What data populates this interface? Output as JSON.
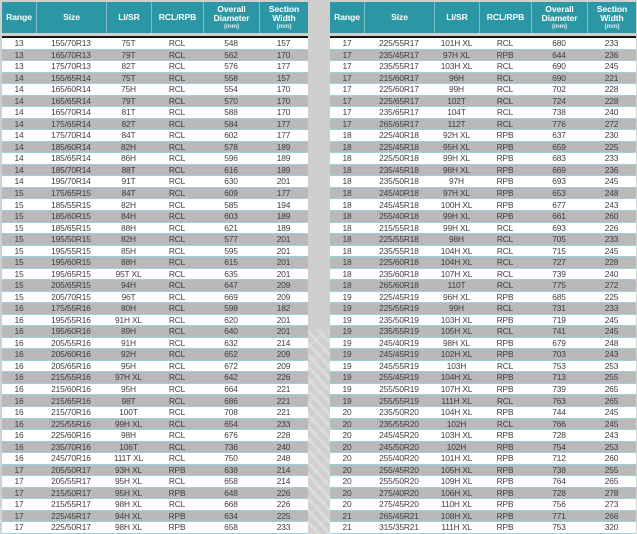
{
  "colors": {
    "header_bg": "#2B97A4",
    "header_text": "#FFFFFF",
    "header_unit_text": "#D8EDF0",
    "header_separator": "#5AB3BE",
    "header_rule": "#141414",
    "row_white": "#FFFFFF",
    "row_gray": "#B9B9B9",
    "row_separator": "#9AD2DA",
    "body_text": "#3D3D3D",
    "page_bg": "#CFCFCF"
  },
  "columns": [
    {
      "label": "Range",
      "unit": ""
    },
    {
      "label": "Size",
      "unit": ""
    },
    {
      "label": "LI/SR",
      "unit": ""
    },
    {
      "label": "RCL/RPB",
      "unit": ""
    },
    {
      "label": "Overall Diameter",
      "unit": "(mm)"
    },
    {
      "label": "Section Width",
      "unit": "(mm)"
    }
  ],
  "tables": [
    {
      "rows": [
        [
          "13",
          "155/70R13",
          "75T",
          "RCL",
          "548",
          "157"
        ],
        [
          "13",
          "165/70R13",
          "79T",
          "RCL",
          "562",
          "170"
        ],
        [
          "13",
          "175/70R13",
          "82T",
          "RCL",
          "576",
          "177"
        ],
        [
          "14",
          "155/65R14",
          "75T",
          "RCL",
          "558",
          "157"
        ],
        [
          "14",
          "165/60R14",
          "75H",
          "RCL",
          "554",
          "170"
        ],
        [
          "14",
          "165/65R14",
          "79T",
          "RCL",
          "570",
          "170"
        ],
        [
          "14",
          "165/70R14",
          "81T",
          "RCL",
          "588",
          "170"
        ],
        [
          "14",
          "175/65R14",
          "82T",
          "RCL",
          "584",
          "177"
        ],
        [
          "14",
          "175/70R14",
          "84T",
          "RCL",
          "602",
          "177"
        ],
        [
          "14",
          "185/60R14",
          "82H",
          "RCL",
          "578",
          "189"
        ],
        [
          "14",
          "185/65R14",
          "86H",
          "RCL",
          "596",
          "189"
        ],
        [
          "14",
          "185/70R14",
          "88T",
          "RCL",
          "616",
          "189"
        ],
        [
          "14",
          "195/70R14",
          "91T",
          "RCL",
          "630",
          "201"
        ],
        [
          "15",
          "175/65R15",
          "84T",
          "RCL",
          "609",
          "177"
        ],
        [
          "15",
          "185/55R15",
          "82H",
          "RCL",
          "585",
          "194"
        ],
        [
          "15",
          "185/60R15",
          "84H",
          "RCL",
          "603",
          "189"
        ],
        [
          "15",
          "185/65R15",
          "88H",
          "RCL",
          "621",
          "189"
        ],
        [
          "15",
          "195/50R15",
          "82H",
          "RCL",
          "577",
          "201"
        ],
        [
          "15",
          "195/55R15",
          "85H",
          "RCL",
          "595",
          "201"
        ],
        [
          "15",
          "195/60R15",
          "88H",
          "RCL",
          "615",
          "201"
        ],
        [
          "15",
          "195/65R15",
          "95T XL",
          "RCL",
          "635",
          "201"
        ],
        [
          "15",
          "205/65R15",
          "94H",
          "RCL",
          "647",
          "209"
        ],
        [
          "15",
          "205/70R15",
          "96T",
          "RCL",
          "669",
          "209"
        ],
        [
          "16",
          "175/55R16",
          "80H",
          "RCL",
          "598",
          "182"
        ],
        [
          "16",
          "195/55R16",
          "91H XL",
          "RCL",
          "620",
          "201"
        ],
        [
          "16",
          "195/60R16",
          "89H",
          "RCL",
          "640",
          "201"
        ],
        [
          "16",
          "205/55R16",
          "91H",
          "RCL",
          "632",
          "214"
        ],
        [
          "16",
          "205/60R16",
          "92H",
          "RCL",
          "652",
          "209"
        ],
        [
          "16",
          "205/65R16",
          "95H",
          "RCL",
          "672",
          "209"
        ],
        [
          "16",
          "215/55R16",
          "97H XL",
          "RCL",
          "642",
          "226"
        ],
        [
          "16",
          "215/60R16",
          "95H",
          "RCL",
          "664",
          "221"
        ],
        [
          "16",
          "215/65R16",
          "98T",
          "RCL",
          "686",
          "221"
        ],
        [
          "16",
          "215/70R16",
          "100T",
          "RCL",
          "708",
          "221"
        ],
        [
          "16",
          "225/55R16",
          "99H XL",
          "RCL",
          "654",
          "233"
        ],
        [
          "16",
          "225/60R16",
          "98H",
          "RCL",
          "676",
          "228"
        ],
        [
          "16",
          "235/70R16",
          "106T",
          "RCL",
          "736",
          "240"
        ],
        [
          "16",
          "245/70R16",
          "111T XL",
          "RCL",
          "750",
          "248"
        ],
        [
          "17",
          "205/50R17",
          "93H XL",
          "RPB",
          "638",
          "214"
        ],
        [
          "17",
          "205/55R17",
          "95H XL",
          "RCL",
          "658",
          "214"
        ],
        [
          "17",
          "215/50R17",
          "95H XL",
          "RPB",
          "648",
          "226"
        ],
        [
          "17",
          "215/55R17",
          "98H XL",
          "RCL",
          "668",
          "226"
        ],
        [
          "17",
          "225/45R17",
          "94H XL",
          "RPB",
          "634",
          "225"
        ],
        [
          "17",
          "225/50R17",
          "98H XL",
          "RPB",
          "658",
          "233"
        ]
      ]
    },
    {
      "rows": [
        [
          "17",
          "225/55R17",
          "101H XL",
          "RCL",
          "680",
          "233"
        ],
        [
          "17",
          "235/45R17",
          "97H XL",
          "RPB",
          "644",
          "236"
        ],
        [
          "17",
          "235/55R17",
          "103H XL",
          "RCL",
          "690",
          "245"
        ],
        [
          "17",
          "215/60R17",
          "96H",
          "RCL",
          "690",
          "221"
        ],
        [
          "17",
          "225/60R17",
          "99H",
          "RCL",
          "702",
          "228"
        ],
        [
          "17",
          "225/65R17",
          "102T",
          "RCL",
          "724",
          "228"
        ],
        [
          "17",
          "235/65R17",
          "104T",
          "RCL",
          "738",
          "240"
        ],
        [
          "17",
          "265/65R17",
          "112T",
          "RCL",
          "776",
          "272"
        ],
        [
          "18",
          "225/40R18",
          "92H XL",
          "RPB",
          "637",
          "230"
        ],
        [
          "18",
          "225/45R18",
          "95H XL",
          "RPB",
          "659",
          "225"
        ],
        [
          "18",
          "225/50R18",
          "99H XL",
          "RPB",
          "683",
          "233"
        ],
        [
          "18",
          "235/45R18",
          "98H XL",
          "RPB",
          "669",
          "236"
        ],
        [
          "18",
          "235/50R18",
          "97H",
          "RPB",
          "693",
          "245"
        ],
        [
          "18",
          "245/40R18",
          "97H XL",
          "RPB",
          "653",
          "248"
        ],
        [
          "18",
          "245/45R18",
          "100H XL",
          "RPB",
          "677",
          "243"
        ],
        [
          "18",
          "255/40R18",
          "99H XL",
          "RPB",
          "661",
          "260"
        ],
        [
          "18",
          "215/55R18",
          "99H XL",
          "RCL",
          "693",
          "226"
        ],
        [
          "18",
          "225/55R18",
          "98H",
          "RCL",
          "705",
          "233"
        ],
        [
          "18",
          "235/55R18",
          "104H XL",
          "RCL",
          "715",
          "245"
        ],
        [
          "18",
          "225/60R18",
          "104H XL",
          "RCL",
          "727",
          "228"
        ],
        [
          "18",
          "235/60R18",
          "107H XL",
          "RCL",
          "739",
          "240"
        ],
        [
          "18",
          "265/60R18",
          "110T",
          "RCL",
          "775",
          "272"
        ],
        [
          "19",
          "225/45R19",
          "96H XL",
          "RPB",
          "685",
          "225"
        ],
        [
          "19",
          "225/55R19",
          "99H",
          "RCL",
          "731",
          "233"
        ],
        [
          "19",
          "235/50R19",
          "103H XL",
          "RPB",
          "719",
          "245"
        ],
        [
          "19",
          "235/55R19",
          "105H XL",
          "RCL",
          "741",
          "245"
        ],
        [
          "19",
          "245/40R19",
          "98H XL",
          "RPB",
          "679",
          "248"
        ],
        [
          "19",
          "245/45R19",
          "102H XL",
          "RPB",
          "703",
          "243"
        ],
        [
          "19",
          "245/55R19",
          "103H",
          "RCL",
          "753",
          "253"
        ],
        [
          "19",
          "255/45R19",
          "104H XL",
          "RPB",
          "713",
          "255"
        ],
        [
          "19",
          "255/50R19",
          "107H XL",
          "RPB",
          "739",
          "265"
        ],
        [
          "19",
          "255/55R19",
          "111H XL",
          "RCL",
          "763",
          "265"
        ],
        [
          "20",
          "235/50R20",
          "104H XL",
          "RPB",
          "744",
          "245"
        ],
        [
          "20",
          "235/55R20",
          "102H",
          "RCL",
          "766",
          "245"
        ],
        [
          "20",
          "245/45R20",
          "103H XL",
          "RPB",
          "728",
          "243"
        ],
        [
          "20",
          "245/50R20",
          "102H",
          "RPB",
          "754",
          "253"
        ],
        [
          "20",
          "255/40R20",
          "101H XL",
          "RPB",
          "712",
          "260"
        ],
        [
          "20",
          "255/45R20",
          "105H XL",
          "RPB",
          "738",
          "255"
        ],
        [
          "20",
          "255/50R20",
          "109H XL",
          "RPB",
          "764",
          "265"
        ],
        [
          "20",
          "275/40R20",
          "106H XL",
          "RPB",
          "728",
          "278"
        ],
        [
          "20",
          "275/45R20",
          "110H XL",
          "RPB",
          "756",
          "273"
        ],
        [
          "21",
          "265/45R21",
          "108H XL",
          "RPB",
          "771",
          "266"
        ],
        [
          "21",
          "315/35R21",
          "111H XL",
          "RPB",
          "753",
          "320"
        ]
      ]
    }
  ]
}
